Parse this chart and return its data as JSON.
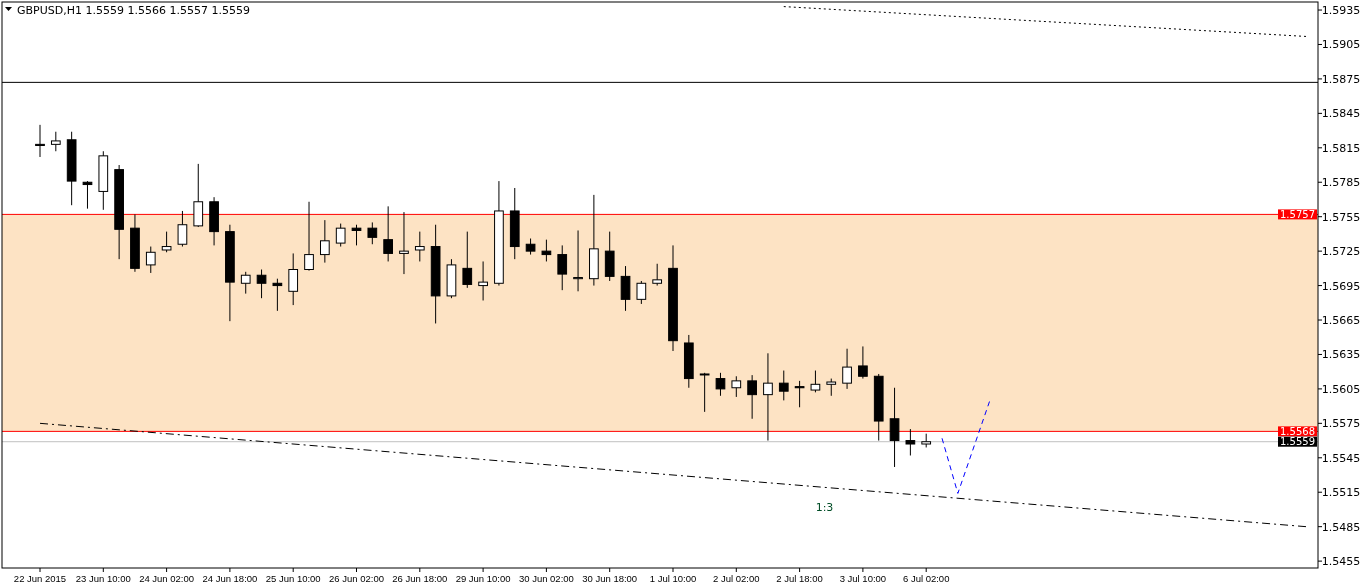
{
  "chart_data": {
    "type": "candlestick",
    "title": "GBPUSD,H1  1.5559 1.5566 1.5557 1.5559",
    "categories": [
      "22 Jun 2015",
      null,
      null,
      null,
      "23 Jun 10:00",
      null,
      null,
      null,
      "24 Jun 02:00",
      null,
      null,
      null,
      "24 Jun 18:00",
      null,
      null,
      null,
      "25 Jun 10:00",
      null,
      null,
      null,
      "26 Jun 02:00",
      null,
      null,
      null,
      "26 Jun 18:00",
      null,
      null,
      null,
      "29 Jun 10:00",
      null,
      null,
      null,
      "30 Jun 02:00",
      null,
      null,
      null,
      "30 Jun 18:00",
      null,
      null,
      null,
      "1 Jul 10:00",
      null,
      null,
      null,
      "2 Jul 02:00",
      null,
      null,
      null,
      "2 Jul 18:00",
      null,
      null,
      null,
      "3 Jul 10:00",
      null,
      null,
      null,
      "6 Jul 02:00",
      null,
      null,
      null,
      null,
      null,
      null,
      null,
      null,
      null,
      null,
      null,
      null,
      null,
      null,
      null,
      null,
      null,
      null,
      null,
      null,
      null,
      null,
      null,
      null
    ],
    "ohlc": [
      [
        1.5818,
        1.5835,
        1.5807,
        1.5817
      ],
      [
        1.5818,
        1.5829,
        1.5812,
        1.5821
      ],
      [
        1.5822,
        1.5829,
        1.5765,
        1.5786
      ],
      [
        1.5785,
        1.5786,
        1.5762,
        1.5783
      ],
      [
        1.5777,
        1.5812,
        1.5761,
        1.5808
      ],
      [
        1.5796,
        1.58,
        1.5718,
        1.5744
      ],
      [
        1.5745,
        1.5757,
        1.5707,
        1.571
      ],
      [
        1.5713,
        1.5729,
        1.5706,
        1.5724
      ],
      [
        1.5726,
        1.5742,
        1.5724,
        1.5729
      ],
      [
        1.5731,
        1.576,
        1.5729,
        1.5748
      ],
      [
        1.5747,
        1.5801,
        1.5746,
        1.5768
      ],
      [
        1.5768,
        1.5772,
        1.573,
        1.5742
      ],
      [
        1.5742,
        1.5748,
        1.5664,
        1.5698
      ],
      [
        1.5697,
        1.5707,
        1.5688,
        1.5704
      ],
      [
        1.5704,
        1.5709,
        1.5684,
        1.5697
      ],
      [
        1.5697,
        1.5701,
        1.5673,
        1.5695
      ],
      [
        1.569,
        1.5723,
        1.5678,
        1.5709
      ],
      [
        1.5709,
        1.5768,
        1.5708,
        1.5722
      ],
      [
        1.5722,
        1.5752,
        1.5715,
        1.5734
      ],
      [
        1.5732,
        1.5749,
        1.5729,
        1.5745
      ],
      [
        1.5745,
        1.5748,
        1.573,
        1.5743
      ],
      [
        1.5745,
        1.575,
        1.5731,
        1.5737
      ],
      [
        1.5735,
        1.5764,
        1.5716,
        1.5723
      ],
      [
        1.5723,
        1.5759,
        1.5705,
        1.5725
      ],
      [
        1.5726,
        1.5742,
        1.5716,
        1.5729
      ],
      [
        1.5729,
        1.5748,
        1.5662,
        1.5686
      ],
      [
        1.5686,
        1.5718,
        1.5684,
        1.5713
      ],
      [
        1.571,
        1.5742,
        1.5693,
        1.5696
      ],
      [
        1.5695,
        1.5716,
        1.5682,
        1.5698
      ],
      [
        1.5697,
        1.5786,
        1.5695,
        1.576
      ],
      [
        1.576,
        1.578,
        1.5718,
        1.5729
      ],
      [
        1.5731,
        1.5736,
        1.5722,
        1.5725
      ],
      [
        1.5725,
        1.5735,
        1.5716,
        1.5722
      ],
      [
        1.5722,
        1.573,
        1.5691,
        1.5705
      ],
      [
        1.5701,
        1.5743,
        1.569,
        1.5702
      ],
      [
        1.5701,
        1.5774,
        1.5695,
        1.5727
      ],
      [
        1.5725,
        1.5742,
        1.5699,
        1.5703
      ],
      [
        1.5703,
        1.5712,
        1.5673,
        1.5683
      ],
      [
        1.5683,
        1.5699,
        1.5679,
        1.5697
      ],
      [
        1.5697,
        1.5714,
        1.5695,
        1.57
      ],
      [
        1.571,
        1.573,
        1.5638,
        1.5647
      ],
      [
        1.5645,
        1.5652,
        1.5606,
        1.5614
      ],
      [
        1.5618,
        1.5619,
        1.5585,
        1.5618
      ],
      [
        1.5614,
        1.5619,
        1.5599,
        1.5605
      ],
      [
        1.5606,
        1.5616,
        1.5598,
        1.5612
      ],
      [
        1.5612,
        1.5617,
        1.5579,
        1.56
      ],
      [
        1.56,
        1.5636,
        1.556,
        1.561
      ],
      [
        1.561,
        1.5621,
        1.5595,
        1.5603
      ],
      [
        1.5607,
        1.5612,
        1.5589,
        1.5606
      ],
      [
        1.5604,
        1.5621,
        1.5602,
        1.5609
      ],
      [
        1.5609,
        1.5614,
        1.5599,
        1.5611
      ],
      [
        1.561,
        1.564,
        1.5605,
        1.5624
      ],
      [
        1.5625,
        1.5642,
        1.5614,
        1.5616
      ],
      [
        1.5616,
        1.5618,
        1.556,
        1.5577
      ],
      [
        1.5579,
        1.5606,
        1.5537,
        1.556
      ],
      [
        1.556,
        1.557,
        1.5547,
        1.5557
      ],
      [
        1.5557,
        1.5566,
        1.5554,
        1.5559
      ],
      null,
      null,
      null,
      null,
      null,
      null,
      null,
      null,
      null,
      null,
      null,
      null,
      null,
      null,
      null,
      null,
      null,
      null,
      null,
      null,
      null,
      null,
      null,
      null
    ],
    "series": [
      {
        "type": "line",
        "color": "#000000",
        "line_style": "dashdot",
        "values": [
          1.5575,
          null,
          null,
          null,
          null,
          null,
          null,
          null,
          null,
          null,
          null,
          null,
          null,
          null,
          null,
          null,
          null,
          null,
          null,
          null,
          null,
          null,
          null,
          null,
          null,
          null,
          null,
          null,
          null,
          null,
          null,
          null,
          null,
          null,
          null,
          null,
          null,
          null,
          null,
          null,
          null,
          null,
          null,
          null,
          null,
          null,
          null,
          null,
          null,
          null,
          null,
          null,
          null,
          null,
          null,
          null,
          null,
          null,
          null,
          null,
          null,
          null,
          null,
          null,
          null,
          null,
          null,
          null,
          null,
          null,
          null,
          null,
          null,
          null,
          null,
          null,
          null,
          null,
          null,
          null,
          1.5485
        ]
      },
      {
        "type": "line",
        "color": "#000000",
        "line_style": "dotted",
        "values": [
          null,
          null,
          null,
          null,
          null,
          null,
          null,
          null,
          null,
          null,
          null,
          null,
          null,
          null,
          null,
          null,
          null,
          null,
          null,
          null,
          null,
          null,
          null,
          null,
          null,
          null,
          null,
          null,
          null,
          null,
          null,
          null,
          null,
          null,
          null,
          null,
          null,
          null,
          null,
          null,
          null,
          null,
          null,
          null,
          null,
          null,
          null,
          1.5938,
          null,
          null,
          null,
          null,
          null,
          null,
          null,
          null,
          null,
          null,
          null,
          null,
          null,
          null,
          null,
          null,
          null,
          null,
          null,
          null,
          null,
          null,
          null,
          null,
          null,
          null,
          null,
          null,
          null,
          null,
          null,
          null,
          1.5912
        ]
      },
      {
        "type": "line",
        "color": "#0000ff",
        "line_style": "dashed",
        "values": [
          null,
          null,
          null,
          null,
          null,
          null,
          null,
          null,
          null,
          null,
          null,
          null,
          null,
          null,
          null,
          null,
          null,
          null,
          null,
          null,
          null,
          null,
          null,
          null,
          null,
          null,
          null,
          null,
          null,
          null,
          null,
          null,
          null,
          null,
          null,
          null,
          null,
          null,
          null,
          null,
          null,
          null,
          null,
          null,
          null,
          null,
          null,
          null,
          null,
          null,
          null,
          null,
          null,
          null,
          null,
          null,
          null,
          1.5562,
          1.5514,
          null,
          1.5594,
          null,
          null,
          null,
          null,
          null,
          null,
          null,
          null,
          null,
          null,
          null,
          null,
          null,
          null,
          null,
          null,
          null,
          null,
          null,
          null
        ]
      }
    ],
    "ylim": [
      1.5449,
      1.5942
    ],
    "yticks": [
      1.5455,
      1.5485,
      1.5515,
      1.5545,
      1.5575,
      1.5605,
      1.5635,
      1.5665,
      1.5695,
      1.5725,
      1.5755,
      1.5785,
      1.5815,
      1.5845,
      1.5875,
      1.5905,
      1.5935
    ],
    "ref_lines": [
      {
        "axis": "y",
        "value": 1.5872,
        "color": "#000000"
      },
      {
        "axis": "y",
        "value": 1.5757,
        "label": "1.5757",
        "color": "#ff0000"
      },
      {
        "axis": "y",
        "value": 1.5568,
        "label": "1.5568",
        "color": "#ff0000"
      },
      {
        "axis": "y",
        "value": 1.5559,
        "label": "1.5559",
        "color": "#c0c0c0"
      }
    ],
    "bands": [
      {
        "axis": "y",
        "from": 1.5568,
        "to": 1.5757,
        "color": "#fde3c4"
      }
    ],
    "annotations": [
      "1:3"
    ],
    "grid": false
  }
}
